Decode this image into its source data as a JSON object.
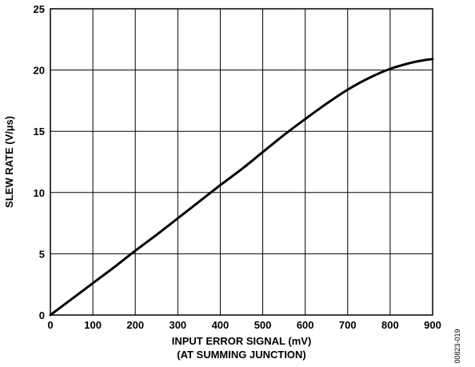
{
  "chart_data": {
    "type": "line",
    "xlabel_lines": [
      "INPUT ERROR SIGNAL (mV)",
      "(AT SUMMING JUNCTION)"
    ],
    "ylabel": "SLEW RATE (V/µs)",
    "xlim": [
      0,
      900
    ],
    "ylim": [
      0,
      25
    ],
    "x_ticks": [
      0,
      100,
      200,
      300,
      400,
      500,
      600,
      700,
      800,
      900
    ],
    "y_ticks": [
      0,
      5,
      10,
      15,
      20,
      25
    ],
    "grid": true,
    "legend": "none",
    "series": [
      {
        "x": [
          0,
          50,
          100,
          150,
          200,
          250,
          300,
          350,
          400,
          450,
          500,
          550,
          600,
          650,
          700,
          750,
          800,
          850,
          880,
          900
        ],
        "y": [
          0,
          1.3,
          2.6,
          3.9,
          5.25,
          6.55,
          7.9,
          9.25,
          10.6,
          11.9,
          13.3,
          14.7,
          16.0,
          17.25,
          18.4,
          19.35,
          20.1,
          20.6,
          20.8,
          20.9
        ]
      }
    ],
    "figure_id": "00823-019"
  },
  "style": {
    "line_color": "#000000",
    "grid_color": "#000000"
  }
}
